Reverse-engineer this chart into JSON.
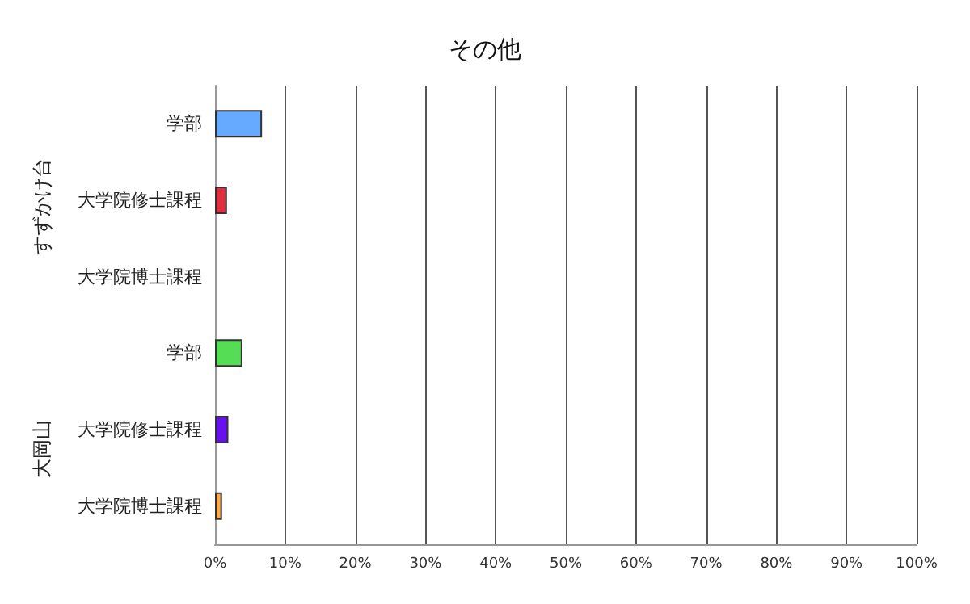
{
  "chart_data": {
    "type": "bar",
    "orientation": "horizontal",
    "title": "その他",
    "categories": [
      "学部",
      "大学院修士課程",
      "大学院博士課程",
      "学部",
      "大学院修士課程",
      "大学院博士課程"
    ],
    "values": [
      6.7,
      1.7,
      0,
      3.9,
      1.9,
      1.0
    ],
    "colors": [
      "#66aaff",
      "#e03040",
      "#888888",
      "#55dd55",
      "#6611ee",
      "#ffaa44"
    ],
    "xlim": [
      0,
      100
    ],
    "xticks": [
      {
        "value": 0,
        "label": "0%"
      },
      {
        "value": 10,
        "label": "10%"
      },
      {
        "value": 20,
        "label": "20%"
      },
      {
        "value": 30,
        "label": "30%"
      },
      {
        "value": 40,
        "label": "40%"
      },
      {
        "value": 50,
        "label": "50%"
      },
      {
        "value": 60,
        "label": "60%"
      },
      {
        "value": 70,
        "label": "70%"
      },
      {
        "value": 80,
        "label": "80%"
      },
      {
        "value": 90,
        "label": "90%"
      },
      {
        "value": 100,
        "label": "100%"
      }
    ],
    "annotations": [
      "すずかけ台",
      "大岡山"
    ],
    "grid": "x"
  }
}
